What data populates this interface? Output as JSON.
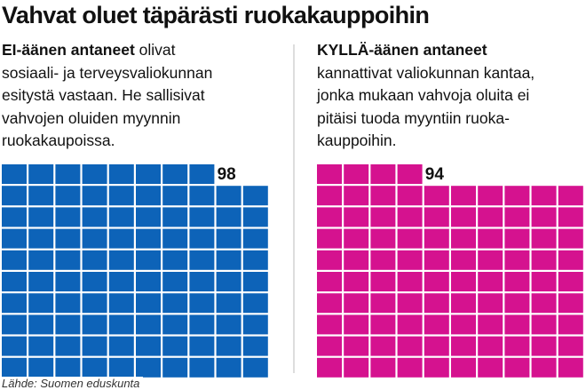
{
  "title": "Vahvat oluet täpärästi ruokakauppoihin",
  "source": "Lähde: Suomen eduskunta",
  "chart_data": [
    {
      "type": "waffle",
      "heading": "EI-äänen antaneet",
      "lines": [
        "olivat",
        "sosiaali- ja terveysvaliokunnan",
        "esitystä vastaan. He sallisivat",
        "vahvojen oluiden myynnin",
        "ruokakaupoissa."
      ],
      "value": 98,
      "color": "#0d63b8"
    },
    {
      "type": "waffle",
      "heading": "KYLLÄ-äänen antaneet",
      "lines": [
        "kannattivat valiokunnan kantaa,",
        "jonka mukaan vahvoja oluita ei",
        "pitäisi tuoda myyntiin ruoka-",
        "kauppoihin."
      ],
      "value": 94,
      "color": "#d5128f"
    }
  ]
}
